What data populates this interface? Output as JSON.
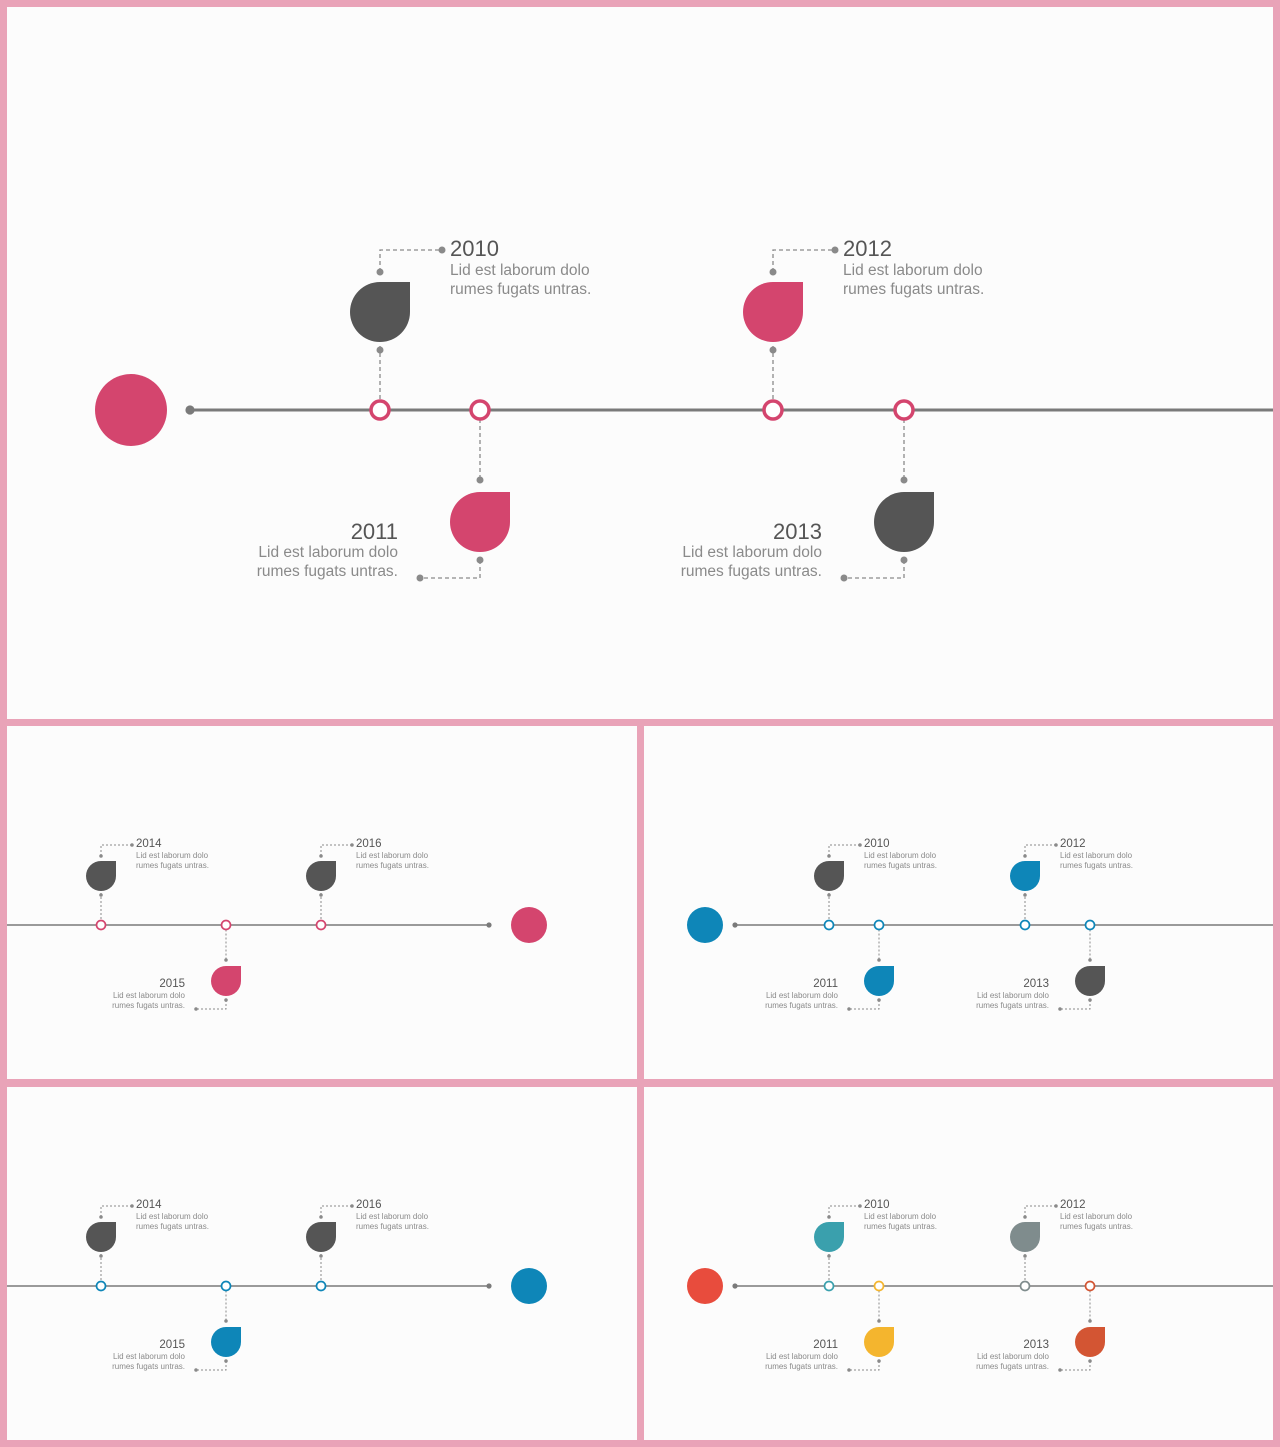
{
  "description_lines": [
    "Lid est laborum dolo",
    "rumes fugats untras."
  ],
  "slides": [
    {
      "id": "slide-main",
      "line_color": "#7a7a7a",
      "big_circle_color": "#d4456e",
      "milestones": [
        {
          "year": "2010",
          "pos": "up",
          "ring": "#d4456e",
          "drop": "#555555"
        },
        {
          "year": "2011",
          "pos": "down",
          "ring": "#d4456e",
          "drop": "#d4456e"
        },
        {
          "year": "2012",
          "pos": "up",
          "ring": "#d4456e",
          "drop": "#d4456e"
        },
        {
          "year": "2013",
          "pos": "down",
          "ring": "#d4456e",
          "drop": "#555555"
        }
      ]
    },
    {
      "id": "slide-pink-continued",
      "line_color": "#7a7a7a",
      "big_circle_color": "#d4456e",
      "milestones": [
        {
          "year": "2014",
          "pos": "up",
          "ring": "#d4456e",
          "drop": "#555555"
        },
        {
          "year": "2015",
          "pos": "down",
          "ring": "#d4456e",
          "drop": "#d4456e"
        },
        {
          "year": "2016",
          "pos": "up",
          "ring": "#d4456e",
          "drop": "#555555"
        }
      ]
    },
    {
      "id": "slide-blue-start",
      "line_color": "#7a7a7a",
      "big_circle_color": "#0e86b8",
      "milestones": [
        {
          "year": "2010",
          "pos": "up",
          "ring": "#0e86b8",
          "drop": "#555555"
        },
        {
          "year": "2011",
          "pos": "down",
          "ring": "#0e86b8",
          "drop": "#0e86b8"
        },
        {
          "year": "2012",
          "pos": "up",
          "ring": "#0e86b8",
          "drop": "#0e86b8"
        },
        {
          "year": "2013",
          "pos": "down",
          "ring": "#0e86b8",
          "drop": "#555555"
        }
      ]
    },
    {
      "id": "slide-blue-continued",
      "line_color": "#7a7a7a",
      "big_circle_color": "#0e86b8",
      "milestones": [
        {
          "year": "2014",
          "pos": "up",
          "ring": "#0e86b8",
          "drop": "#555555"
        },
        {
          "year": "2015",
          "pos": "down",
          "ring": "#0e86b8",
          "drop": "#0e86b8"
        },
        {
          "year": "2016",
          "pos": "up",
          "ring": "#0e86b8",
          "drop": "#555555"
        }
      ]
    },
    {
      "id": "slide-multicolor",
      "line_color": "#7a7a7a",
      "big_circle_color": "#e84c3d",
      "milestones": [
        {
          "year": "2010",
          "pos": "up",
          "ring": "#3aa0ad",
          "drop": "#3aa0ad"
        },
        {
          "year": "2011",
          "pos": "down",
          "ring": "#f4b52e",
          "drop": "#f4b52e"
        },
        {
          "year": "2012",
          "pos": "up",
          "ring": "#7f8c8d",
          "drop": "#7f8c8d"
        },
        {
          "year": "2013",
          "pos": "down",
          "ring": "#d35533",
          "drop": "#d35533"
        }
      ]
    }
  ]
}
